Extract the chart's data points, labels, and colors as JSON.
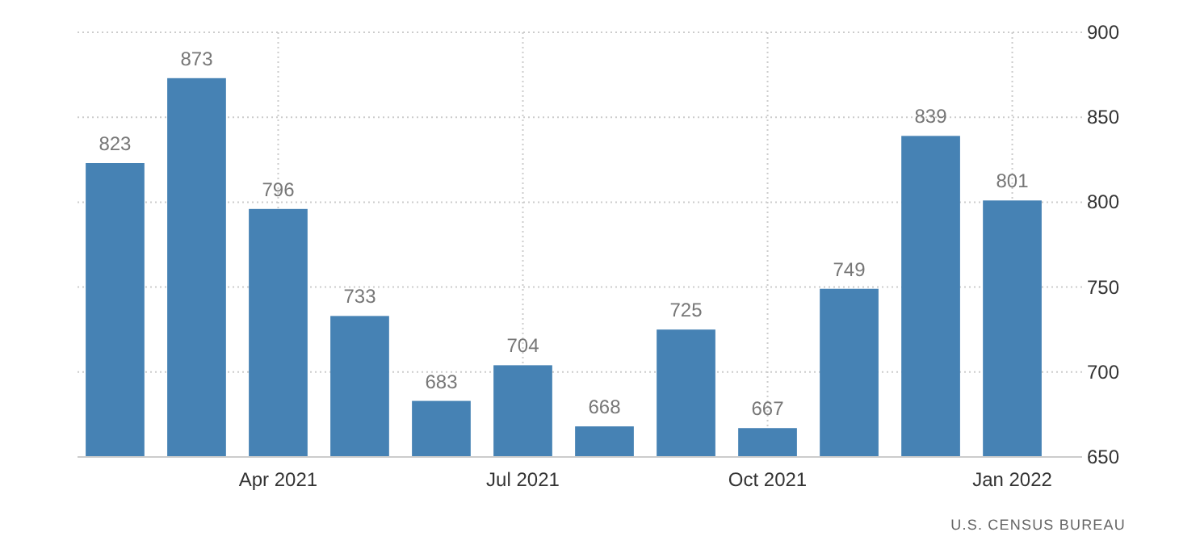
{
  "chart_data": {
    "type": "bar",
    "categories": [
      null,
      null,
      "Apr 2021",
      null,
      null,
      "Jul 2021",
      null,
      null,
      "Oct 2021",
      null,
      null,
      "Jan 2022"
    ],
    "values": [
      823,
      873,
      796,
      733,
      683,
      704,
      668,
      725,
      667,
      749,
      839,
      801
    ],
    "color": "#4682b4",
    "ylim": [
      650,
      900
    ],
    "yticks": [
      650,
      700,
      750,
      800,
      850,
      900
    ],
    "grid": true,
    "data_labels": true,
    "annotations": [
      "U.S. CENSUS BUREAU"
    ]
  }
}
